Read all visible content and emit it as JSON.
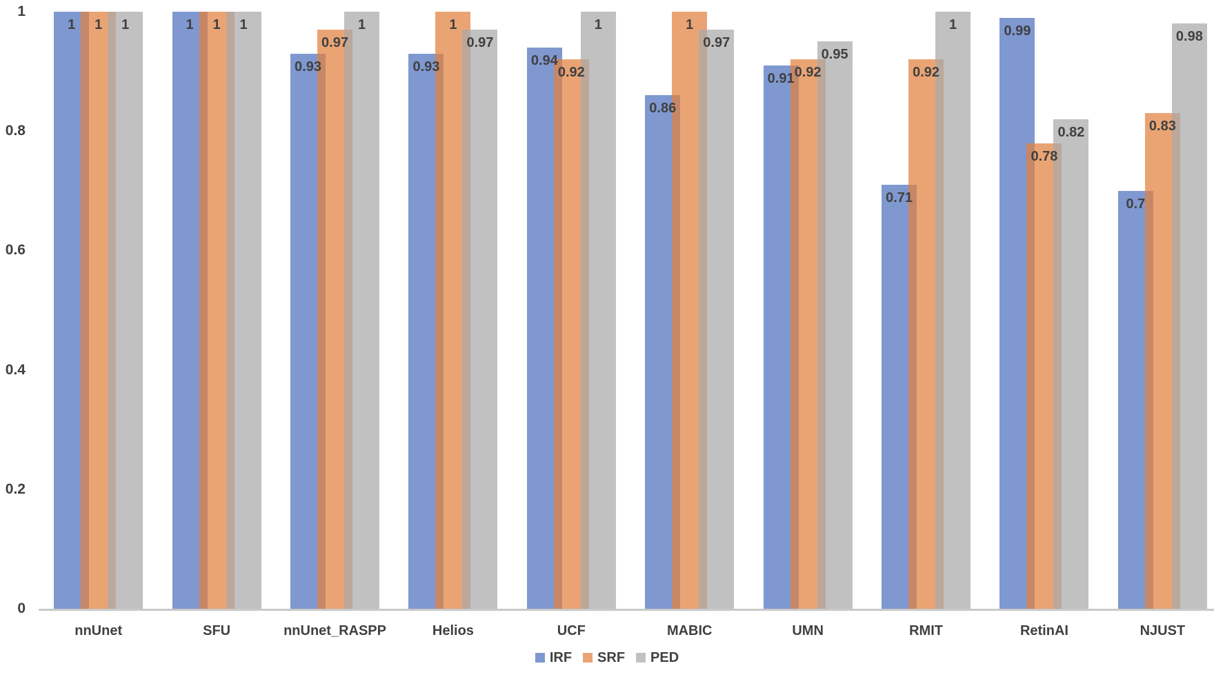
{
  "chart_data": {
    "type": "bar",
    "categories": [
      "nnUnet",
      "SFU",
      "nnUnet_RASPP",
      "Helios",
      "UCF",
      "MABIC",
      "UMN",
      "RMIT",
      "RetinAI",
      "NJUST"
    ],
    "series": [
      {
        "name": "IRF",
        "values": [
          1,
          1,
          0.93,
          0.93,
          0.94,
          0.86,
          0.91,
          0.71,
          0.99,
          0.7
        ],
        "labels": [
          "1",
          "1",
          "0.93",
          "0.93",
          "0.94",
          "0.86",
          "0.91",
          "0.71",
          "0.99",
          "0.7"
        ],
        "bar_color": "rgba(78,112,190,0.72)",
        "legend_color": "#8098D0"
      },
      {
        "name": "SRF",
        "values": [
          1,
          1,
          0.97,
          1,
          0.92,
          1,
          0.92,
          0.92,
          0.78,
          0.83
        ],
        "labels": [
          "1",
          "1",
          "0.97",
          "1",
          "0.92",
          "1",
          "0.92",
          "0.92",
          "0.78",
          "0.83"
        ],
        "bar_color": "rgba(226,129,62,0.72)",
        "legend_color": "#EAA474"
      },
      {
        "name": "PED",
        "values": [
          1,
          1,
          1,
          0.97,
          1,
          0.97,
          0.95,
          1,
          0.82,
          0.98
        ],
        "labels": [
          "1",
          "1",
          "1",
          "0.97",
          "1",
          "0.97",
          "0.95",
          "1",
          "0.82",
          "0.98"
        ],
        "bar_color": "rgba(169,169,170,0.72)",
        "legend_color": "#C1C1C2"
      }
    ],
    "yticks": [
      "1",
      "0.8",
      "0.6",
      "0.4",
      "0.2",
      "0"
    ],
    "ytick_values": [
      1,
      0.8,
      0.6,
      0.4,
      0.2,
      0
    ],
    "ylim": [
      0,
      1
    ],
    "xlabel": "",
    "ylabel": "",
    "title": "",
    "grid": false,
    "legend_position": "bottom",
    "bar_overlap": true,
    "text_color": "#404040",
    "axis_line_color": "#C9C9C9",
    "background_color": "#ffffff"
  }
}
